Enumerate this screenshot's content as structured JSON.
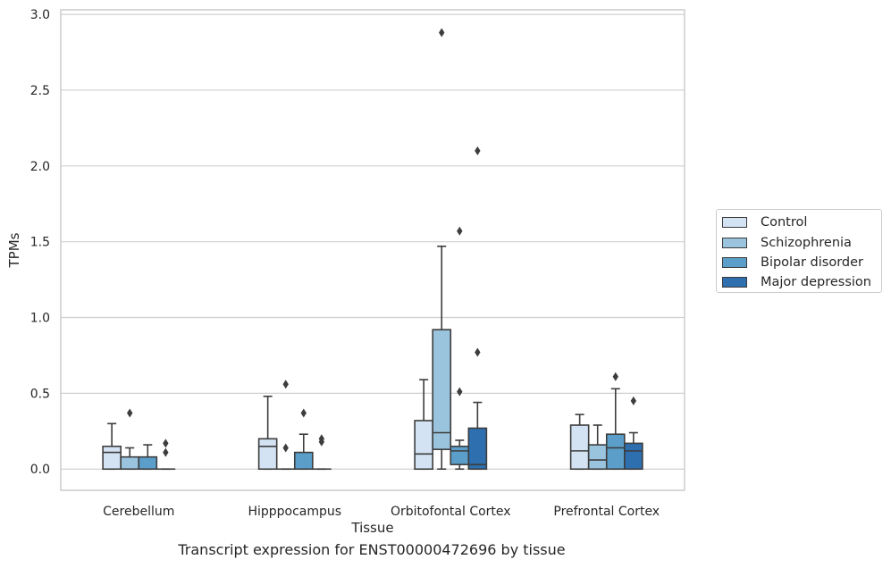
{
  "chart_data": {
    "type": "box",
    "xlabel": "Tissue",
    "ylabel": "TPMs",
    "caption": "Transcript expression for ENST00000472696 by tissue",
    "ylim": [
      -0.14,
      3.03
    ],
    "yticks": [
      0.0,
      0.5,
      1.0,
      1.5,
      2.0,
      2.5,
      3.0
    ],
    "ytick_labels": [
      "0.0",
      "0.5",
      "1.0",
      "1.5",
      "2.0",
      "2.5",
      "3.0"
    ],
    "grid": "horizontal",
    "legend_position": "right",
    "categories": [
      "Cerebellum",
      "Hipppocampus",
      "Orbitofontal Cortex",
      "Prefrontal Cortex"
    ],
    "series": [
      {
        "name": "Control",
        "color": "#d3e3f3",
        "boxes": [
          {
            "min": 0.0,
            "q1": 0.0,
            "median": 0.11,
            "q3": 0.15,
            "max": 0.3,
            "outliers": []
          },
          {
            "min": 0.0,
            "q1": 0.0,
            "median": 0.15,
            "q3": 0.2,
            "max": 0.48,
            "outliers": []
          },
          {
            "min": 0.0,
            "q1": 0.0,
            "median": 0.1,
            "q3": 0.32,
            "max": 0.59,
            "outliers": []
          },
          {
            "min": 0.0,
            "q1": 0.0,
            "median": 0.12,
            "q3": 0.29,
            "max": 0.36,
            "outliers": []
          }
        ]
      },
      {
        "name": "Schizophrenia",
        "color": "#9ac3dd",
        "boxes": [
          {
            "min": 0.0,
            "q1": 0.0,
            "median": 0.0,
            "q3": 0.08,
            "max": 0.14,
            "outliers": [
              0.37
            ]
          },
          {
            "min": 0.0,
            "q1": 0.0,
            "median": 0.0,
            "q3": 0.0,
            "max": 0.0,
            "outliers": [
              0.14,
              0.56
            ]
          },
          {
            "min": 0.0,
            "q1": 0.13,
            "median": 0.24,
            "q3": 0.92,
            "max": 1.47,
            "outliers": [
              2.88
            ]
          },
          {
            "min": 0.0,
            "q1": 0.0,
            "median": 0.06,
            "q3": 0.16,
            "max": 0.29,
            "outliers": []
          }
        ]
      },
      {
        "name": "Bipolar disorder",
        "color": "#5a9ec9",
        "boxes": [
          {
            "min": 0.0,
            "q1": 0.0,
            "median": 0.0,
            "q3": 0.08,
            "max": 0.16,
            "outliers": []
          },
          {
            "min": 0.0,
            "q1": 0.0,
            "median": 0.0,
            "q3": 0.11,
            "max": 0.23,
            "outliers": [
              0.37
            ]
          },
          {
            "min": 0.0,
            "q1": 0.03,
            "median": 0.12,
            "q3": 0.15,
            "max": 0.19,
            "outliers": [
              0.51,
              1.57
            ]
          },
          {
            "min": 0.0,
            "q1": 0.0,
            "median": 0.14,
            "q3": 0.23,
            "max": 0.53,
            "outliers": [
              0.61
            ]
          }
        ]
      },
      {
        "name": "Major depression",
        "color": "#2d6faf",
        "boxes": [
          {
            "min": 0.0,
            "q1": 0.0,
            "median": 0.0,
            "q3": 0.0,
            "max": 0.0,
            "outliers": [
              0.11,
              0.17
            ]
          },
          {
            "min": 0.0,
            "q1": 0.0,
            "median": 0.0,
            "q3": 0.0,
            "max": 0.0,
            "outliers": [
              0.18,
              0.2
            ]
          },
          {
            "min": 0.0,
            "q1": 0.0,
            "median": 0.03,
            "q3": 0.27,
            "max": 0.44,
            "outliers": [
              0.77,
              2.1
            ]
          },
          {
            "min": 0.0,
            "q1": 0.0,
            "median": 0.12,
            "q3": 0.17,
            "max": 0.24,
            "outliers": [
              0.45
            ]
          }
        ]
      }
    ]
  }
}
